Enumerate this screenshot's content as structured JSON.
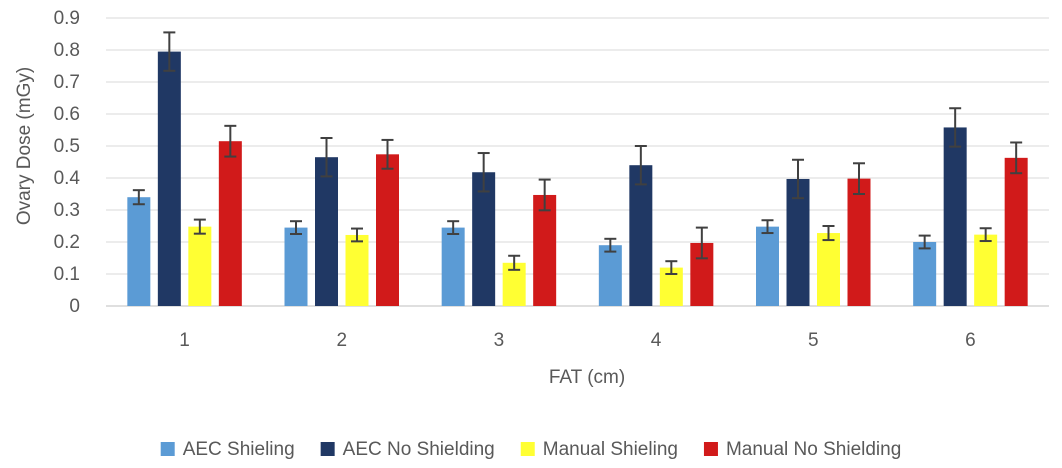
{
  "chart_data": {
    "type": "bar",
    "title": "",
    "xlabel": "FAT (cm)",
    "ylabel": "Ovary Dose (mGy)",
    "ylim": [
      0,
      0.9
    ],
    "yticks": [
      "0",
      "0.1",
      "0.2",
      "0.3",
      "0.4",
      "0.5",
      "0.6",
      "0.7",
      "0.8",
      "0.9"
    ],
    "categories": [
      "1",
      "2",
      "3",
      "4",
      "5",
      "6"
    ],
    "grid": true,
    "legend_position": "bottom",
    "series": [
      {
        "name": "AEC Shieling",
        "color": "#5b9bd5",
        "values": [
          0.34,
          0.245,
          0.245,
          0.19,
          0.248,
          0.2
        ],
        "error": [
          0.022,
          0.02,
          0.02,
          0.02,
          0.02,
          0.02
        ]
      },
      {
        "name": "AEC No Shielding",
        "color": "#203864",
        "values": [
          0.795,
          0.465,
          0.418,
          0.44,
          0.397,
          0.558
        ],
        "error": [
          0.06,
          0.06,
          0.06,
          0.06,
          0.06,
          0.06
        ]
      },
      {
        "name": "Manual Shieling",
        "color": "#ffff33",
        "values": [
          0.248,
          0.222,
          0.135,
          0.12,
          0.228,
          0.223
        ],
        "error": [
          0.022,
          0.02,
          0.022,
          0.02,
          0.022,
          0.02
        ]
      },
      {
        "name": "Manual No Shielding",
        "color": "#d11a1a",
        "values": [
          0.515,
          0.474,
          0.347,
          0.197,
          0.398,
          0.463
        ],
        "error": [
          0.048,
          0.045,
          0.048,
          0.048,
          0.048,
          0.048
        ]
      }
    ]
  }
}
